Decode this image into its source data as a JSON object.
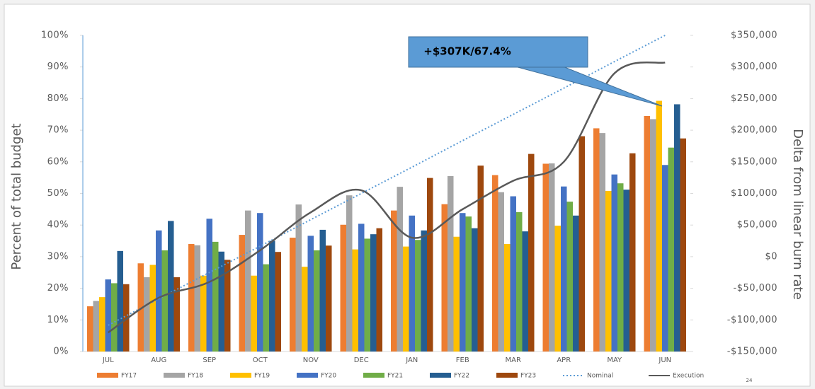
{
  "chart_data": {
    "type": "bar",
    "y_label": "Percent of total budget",
    "y2_label": "Delta from linear burn rate",
    "annotation": "+$307K/67.4%",
    "categories": [
      "JUL",
      "AUG",
      "SEP",
      "OCT",
      "NOV",
      "DEC",
      "JAN",
      "FEB",
      "MAR",
      "APR",
      "MAY",
      "JUN"
    ],
    "series": [
      {
        "name": "FY17",
        "type": "bar",
        "color": "#ed7d31",
        "values": [
          14.3,
          27.9,
          34,
          36.9,
          36,
          40.1,
          44.6,
          46.6,
          55.8,
          59.4,
          70.6,
          74.5
        ]
      },
      {
        "name": "FY18",
        "type": "bar",
        "color": "#a5a5a5",
        "values": [
          16,
          23.5,
          33.6,
          44.6,
          46.5,
          49.4,
          52.1,
          55.5,
          50.4,
          59.5,
          69.1,
          73.5
        ]
      },
      {
        "name": "FY19",
        "type": "bar",
        "color": "#ffc000",
        "values": [
          17.2,
          27.4,
          24,
          24,
          26.8,
          32.3,
          33.2,
          36.3,
          34,
          39.8,
          50.8,
          79.3
        ]
      },
      {
        "name": "FY20",
        "type": "bar",
        "color": "#4472c4",
        "values": [
          22.8,
          38.3,
          42,
          43.8,
          36.6,
          40.4,
          43,
          43.8,
          49.1,
          52.2,
          56,
          59
        ]
      },
      {
        "name": "FY21",
        "type": "bar",
        "color": "#70ad47",
        "values": [
          21.6,
          32,
          34.7,
          27.6,
          32,
          35.7,
          35.3,
          42.7,
          44.1,
          47.4,
          53.2,
          64.5
        ]
      },
      {
        "name": "FY22",
        "type": "bar",
        "color": "#255e91",
        "values": [
          31.8,
          41.3,
          31.6,
          35,
          38.5,
          37.1,
          38.3,
          39,
          38,
          43,
          51.2,
          78.2
        ]
      },
      {
        "name": "FY23",
        "type": "bar",
        "color": "#9e480e",
        "values": [
          21.3,
          23.5,
          29,
          31.5,
          33.5,
          39,
          54.9,
          58.8,
          62.5,
          68.1,
          62.7,
          67.4
        ]
      },
      {
        "name": "Nominal",
        "type": "line",
        "style": "dotted",
        "color": "#5b9bd5",
        "values": [
          8.3,
          16.7,
          25,
          33.3,
          41.7,
          50,
          58.3,
          66.7,
          75,
          83.3,
          91.7,
          100
        ]
      },
      {
        "name": "Execution",
        "type": "line",
        "style": "smooth",
        "axis": "y2",
        "color": "#595959",
        "values": [
          -120000,
          -65000,
          -40000,
          10000,
          70000,
          105000,
          30000,
          75000,
          120000,
          150000,
          290000,
          307000
        ]
      }
    ],
    "ylim": [
      0,
      100
    ],
    "yticks": [
      {
        "value": 0,
        "label": "0%"
      },
      {
        "value": 10,
        "label": "10%"
      },
      {
        "value": 20,
        "label": "20%"
      },
      {
        "value": 30,
        "label": "30%"
      },
      {
        "value": 40,
        "label": "40%"
      },
      {
        "value": 50,
        "label": "50%"
      },
      {
        "value": 60,
        "label": "60%"
      },
      {
        "value": 70,
        "label": "70%"
      },
      {
        "value": 80,
        "label": "80%"
      },
      {
        "value": 90,
        "label": "90%"
      },
      {
        "value": 100,
        "label": "100%"
      }
    ],
    "y2lim": [
      -150000,
      350000
    ],
    "y2ticks": [
      {
        "value": -150000,
        "label": "-$150,000"
      },
      {
        "value": -100000,
        "label": "-$100,000"
      },
      {
        "value": -50000,
        "label": "-$50,000"
      },
      {
        "value": 0,
        "label": "$0"
      },
      {
        "value": 50000,
        "label": "$50,000"
      },
      {
        "value": 100000,
        "label": "$100,000"
      },
      {
        "value": 150000,
        "label": "$150,000"
      },
      {
        "value": 200000,
        "label": "$200,000"
      },
      {
        "value": 250000,
        "label": "$250,000"
      },
      {
        "value": 300000,
        "label": "$300,000"
      },
      {
        "value": 350000,
        "label": "$350,000"
      }
    ],
    "grid": false,
    "legend": "bottom"
  },
  "page_number": "24"
}
